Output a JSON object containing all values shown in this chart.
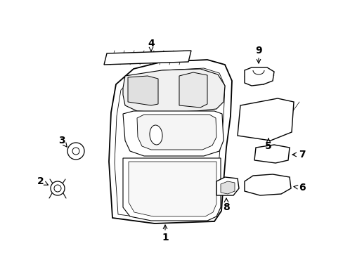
{
  "bg_color": "#ffffff",
  "line_color": "#000000",
  "fig_width": 4.89,
  "fig_height": 3.6,
  "dpi": 100,
  "font_size": 10
}
